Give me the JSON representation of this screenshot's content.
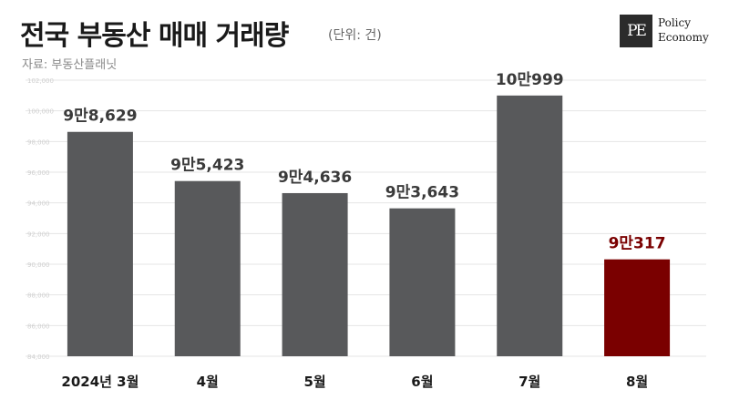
{
  "header": {
    "title": "전국 부동산 매매 거래량",
    "unit": "(단위: 건)",
    "source": "자료: 부동산플래닛"
  },
  "logo": {
    "mark": "PE",
    "line1": "Policy",
    "line2": "Economy"
  },
  "colors": {
    "bar": "#58595b",
    "highlight": "#7a0000",
    "label": "#3a3a3a",
    "grid": "#e5e5e5"
  },
  "chart_data": {
    "type": "bar",
    "categories": [
      "2024년 3월",
      "4월",
      "5월",
      "6월",
      "7월",
      "8월"
    ],
    "values": [
      98629,
      95423,
      94636,
      93643,
      100999,
      90317
    ],
    "value_labels": [
      "9만8,629",
      "9만5,423",
      "9만4,636",
      "9만3,643",
      "10만999",
      "9만317"
    ],
    "highlight_index": 5,
    "ylim": [
      84000,
      102000
    ],
    "yticks": [
      84000,
      86000,
      88000,
      90000,
      92000,
      94000,
      96000,
      98000,
      100000,
      102000
    ],
    "ytick_labels": [
      "84,000",
      "86,000",
      "88,000",
      "90,000",
      "92,000",
      "94,000",
      "96,000",
      "98,000",
      "100,000",
      "102,000"
    ],
    "grid": true
  }
}
